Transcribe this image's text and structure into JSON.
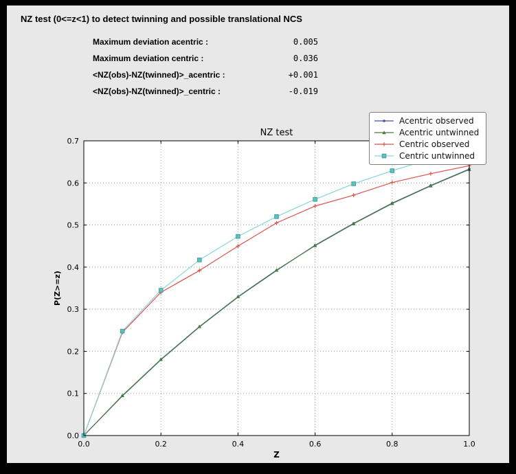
{
  "header": {
    "title": "NZ test (0<=z<1) to detect twinning and possible translational NCS"
  },
  "stats": {
    "rows": [
      {
        "label": "Maximum deviation acentric :",
        "value": "0.005"
      },
      {
        "label": "Maximum deviation centric :",
        "value": "0.036"
      },
      {
        "label": "<NZ(obs)-NZ(twinned)>_acentric :",
        "value": "+0.001"
      },
      {
        "label": "<NZ(obs)-NZ(twinned)>_centric :",
        "value": "-0.019"
      }
    ]
  },
  "chart_data": {
    "type": "line",
    "title": "NZ test",
    "xlabel": "Z",
    "ylabel": "P(Z>=z)",
    "xlim": [
      0.0,
      1.0
    ],
    "ylim": [
      0.0,
      0.7
    ],
    "x_ticks": [
      0.0,
      0.2,
      0.4,
      0.6,
      0.8,
      1.0
    ],
    "x_tick_labels": [
      "0.0",
      "0.2",
      "0.4",
      "0.6",
      "0.8",
      "1.0"
    ],
    "y_ticks": [
      0.0,
      0.1,
      0.2,
      0.3,
      0.4,
      0.5,
      0.6,
      0.7
    ],
    "y_tick_labels": [
      "0.0",
      "0.1",
      "0.2",
      "0.3",
      "0.4",
      "0.5",
      "0.6",
      "0.7"
    ],
    "grid": "dotted",
    "legend_position": "upper right",
    "x": [
      0.0,
      0.1,
      0.2,
      0.3,
      0.4,
      0.5,
      0.6,
      0.7,
      0.8,
      0.9,
      1.0
    ],
    "series": [
      {
        "name": "Acentric observed",
        "color": "#3a50a8",
        "marker": "dot",
        "values": [
          0.0,
          0.094,
          0.18,
          0.258,
          0.329,
          0.392,
          0.452,
          0.504,
          0.552,
          0.594,
          0.633
        ]
      },
      {
        "name": "Acentric untwinned",
        "color": "#4c7c3c",
        "marker": "triangle",
        "values": [
          0.0,
          0.095,
          0.181,
          0.259,
          0.33,
          0.393,
          0.451,
          0.503,
          0.551,
          0.593,
          0.632
        ]
      },
      {
        "name": "Centric observed",
        "color": "#e0514a",
        "marker": "plus",
        "values": [
          0.0,
          0.245,
          0.34,
          0.392,
          0.45,
          0.505,
          0.545,
          0.571,
          0.601,
          0.622,
          0.641
        ]
      },
      {
        "name": "Centric untwinned",
        "color": "#8ad6d6",
        "marker": "square",
        "marker_fill": "#5fc2c2",
        "marker_edge": "#3f9e9e",
        "values": [
          0.0,
          0.248,
          0.345,
          0.417,
          0.473,
          0.52,
          0.561,
          0.598,
          0.629,
          0.657,
          0.683
        ]
      }
    ]
  },
  "colors": {
    "window_bg": "#000000",
    "panel_bg": "#e8e8e8",
    "plot_bg": "#ffffff",
    "grid": "#9e9e9e"
  }
}
